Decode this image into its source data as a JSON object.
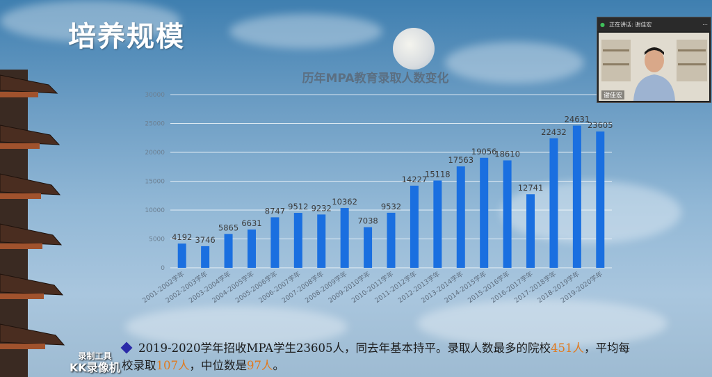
{
  "slide_title": "培养规模",
  "video": {
    "status": "正在讲话: 谢佳宏",
    "speaker": "谢佳宏"
  },
  "summary": {
    "p1": "2019-2020学年招收MPA学生23605人，同去年基本持平。录取人数最多的院校",
    "v1": "451人",
    "p2": "，平均每校录取",
    "v2": "107人",
    "p3": "，中位数是",
    "v3": "97人",
    "p4": "。"
  },
  "watermark": {
    "line1": "录制工具",
    "line2": "KK录像机"
  },
  "colors": {
    "bar": "#1a6fe0",
    "highlight": "#e07a1f"
  },
  "chart_data": {
    "type": "bar",
    "title": "历年MPA教育录取人数变化",
    "categories": [
      "2001-2002学年",
      "2002-2003学年",
      "2003-2004学年",
      "2004-2005学年",
      "2005-2006学年",
      "2006-2007学年",
      "2007-2008学年",
      "2008-2009学年",
      "2009-2010学年",
      "2010-2011学年",
      "2011-2012学年",
      "2012-2013学年",
      "2013-2014学年",
      "2014-2015学年",
      "2015-2016学年",
      "2016-2017学年",
      "2017-2018学年",
      "2018-2019学年",
      "2019-2020学年"
    ],
    "values": [
      4192,
      3746,
      5865,
      6631,
      8747,
      9512,
      9232,
      10362,
      7038,
      9532,
      14227,
      15118,
      17563,
      19056,
      18610,
      12741,
      22432,
      24631,
      23605
    ],
    "yticks": [
      "0",
      "5000",
      "10000",
      "15000",
      "20000",
      "25000",
      "30000"
    ],
    "ylim": [
      0,
      30000
    ],
    "grid": true,
    "legend": "none"
  }
}
